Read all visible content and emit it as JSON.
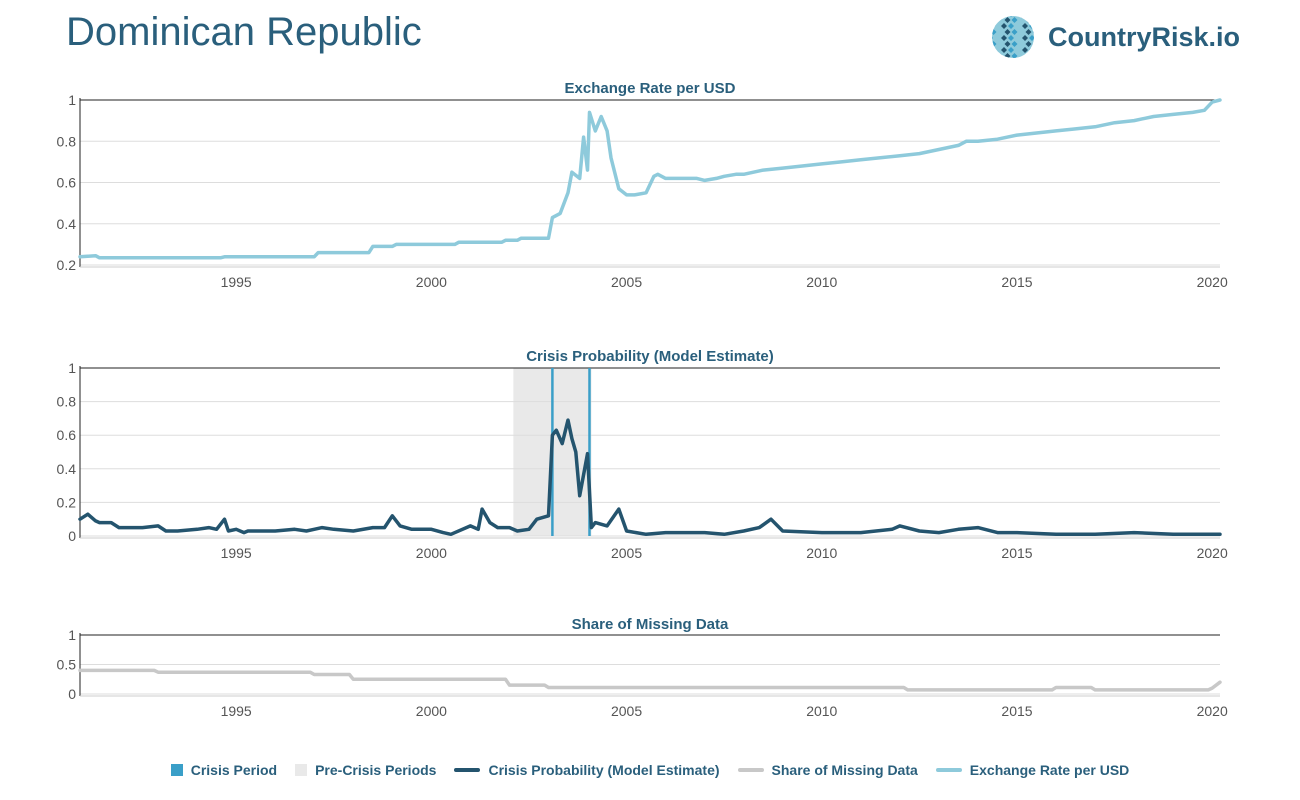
{
  "page": {
    "title": "Dominican Republic",
    "logo_text": "CountryRisk.io"
  },
  "colors": {
    "title": "#2a5f7c",
    "crisis_period": "#3a9fc8",
    "pre_crisis": "#e9e9e9",
    "crisis_probability": "#24546e",
    "missing_data": "#c8c8c8",
    "exchange_rate": "#8ecadb",
    "grid": "#dddddd",
    "axis_text": "#555555"
  },
  "legend": [
    {
      "label": "Crisis Period",
      "kind": "box",
      "color_key": "crisis_period"
    },
    {
      "label": "Pre-Crisis Periods",
      "kind": "box",
      "color_key": "pre_crisis"
    },
    {
      "label": "Crisis Probability (Model Estimate)",
      "kind": "line",
      "color_key": "crisis_probability"
    },
    {
      "label": "Share of Missing Data",
      "kind": "line",
      "color_key": "missing_data"
    },
    {
      "label": "Exchange Rate per USD",
      "kind": "line",
      "color_key": "exchange_rate"
    }
  ],
  "chart_data": [
    {
      "type": "line",
      "title": "Exchange Rate per USD",
      "xlim": [
        1991,
        2020.2
      ],
      "ylim": [
        0.2,
        1
      ],
      "yticks": [
        0.2,
        0.4,
        0.6,
        0.8,
        1
      ],
      "ytick_labels": [
        "0.2",
        "0.4",
        "0.6",
        "0.8",
        "1"
      ],
      "xticks": [
        1995,
        2000,
        2005,
        2010,
        2015,
        2020
      ],
      "xtick_labels": [
        "1995",
        "2000",
        "2005",
        "2010",
        "2015",
        "2020"
      ],
      "grid": true,
      "series": [
        {
          "name": "Exchange Rate per USD",
          "color_key": "exchange_rate",
          "x": [
            1991.0,
            1991.4,
            1991.5,
            1994.6,
            1994.7,
            1997.0,
            1997.1,
            1998.4,
            1998.5,
            1999.0,
            1999.1,
            2000.6,
            2000.7,
            2001.8,
            2001.9,
            2002.2,
            2002.3,
            2003.0,
            2003.1,
            2003.3,
            2003.5,
            2003.6,
            2003.8,
            2003.9,
            2004.0,
            2004.05,
            2004.2,
            2004.35,
            2004.5,
            2004.6,
            2004.8,
            2005.0,
            2005.2,
            2005.5,
            2005.7,
            2005.8,
            2006.0,
            2006.2,
            2006.5,
            2006.8,
            2007.0,
            2007.3,
            2007.5,
            2007.8,
            2008.0,
            2008.5,
            2009.0,
            2009.5,
            2010.0,
            2010.5,
            2011.0,
            2011.5,
            2012.0,
            2012.5,
            2013.0,
            2013.5,
            2013.7,
            2014.0,
            2014.5,
            2015.0,
            2015.5,
            2016.0,
            2016.5,
            2017.0,
            2017.5,
            2018.0,
            2018.5,
            2019.0,
            2019.5,
            2019.8,
            2020.0,
            2020.2
          ],
          "y": [
            0.24,
            0.245,
            0.235,
            0.235,
            0.24,
            0.24,
            0.26,
            0.26,
            0.29,
            0.29,
            0.3,
            0.3,
            0.31,
            0.31,
            0.32,
            0.32,
            0.33,
            0.33,
            0.43,
            0.45,
            0.55,
            0.65,
            0.62,
            0.82,
            0.66,
            0.94,
            0.85,
            0.92,
            0.85,
            0.72,
            0.57,
            0.54,
            0.54,
            0.55,
            0.63,
            0.64,
            0.62,
            0.62,
            0.62,
            0.62,
            0.61,
            0.62,
            0.63,
            0.64,
            0.64,
            0.66,
            0.67,
            0.68,
            0.69,
            0.7,
            0.71,
            0.72,
            0.73,
            0.74,
            0.76,
            0.78,
            0.8,
            0.8,
            0.81,
            0.83,
            0.84,
            0.85,
            0.86,
            0.87,
            0.89,
            0.9,
            0.92,
            0.93,
            0.94,
            0.95,
            0.99,
            1.0
          ]
        }
      ]
    },
    {
      "type": "line",
      "title": "Crisis Probability (Model Estimate)",
      "xlim": [
        1991,
        2020.2
      ],
      "ylim": [
        0,
        1
      ],
      "yticks": [
        0,
        0.2,
        0.4,
        0.6,
        0.8,
        1
      ],
      "ytick_labels": [
        "0",
        "0.2",
        "0.4",
        "0.6",
        "0.8",
        "1"
      ],
      "xticks": [
        1995,
        2000,
        2005,
        2010,
        2015,
        2020
      ],
      "xtick_labels": [
        "1995",
        "2000",
        "2005",
        "2010",
        "2015",
        "2020"
      ],
      "grid": true,
      "pre_crisis_periods": [
        [
          2002.1,
          2004.1
        ]
      ],
      "crisis_period_markers": [
        2003.1,
        2004.05
      ],
      "series": [
        {
          "name": "Crisis Probability (Model Estimate)",
          "color_key": "crisis_probability",
          "x": [
            1991.0,
            1991.2,
            1991.4,
            1991.5,
            1991.8,
            1992.0,
            1992.3,
            1992.6,
            1993.0,
            1993.2,
            1993.5,
            1994.0,
            1994.3,
            1994.5,
            1994.7,
            1994.8,
            1995.0,
            1995.2,
            1995.3,
            1995.5,
            1996.0,
            1996.5,
            1996.8,
            1997.0,
            1997.2,
            1997.5,
            1998.0,
            1998.5,
            1998.8,
            1999.0,
            1999.2,
            1999.5,
            2000.0,
            2000.3,
            2000.5,
            2001.0,
            2001.2,
            2001.3,
            2001.5,
            2001.7,
            2002.0,
            2002.2,
            2002.5,
            2002.7,
            2003.0,
            2003.1,
            2003.2,
            2003.35,
            2003.5,
            2003.6,
            2003.7,
            2003.8,
            2004.0,
            2004.1,
            2004.2,
            2004.5,
            2004.8,
            2005.0,
            2005.5,
            2006.0,
            2007.0,
            2007.5,
            2008.0,
            2008.4,
            2008.7,
            2009.0,
            2010.0,
            2011.0,
            2011.8,
            2012.0,
            2012.5,
            2013.0,
            2013.5,
            2014.0,
            2014.5,
            2015.0,
            2016.0,
            2017.0,
            2018.0,
            2019.0,
            2020.2
          ],
          "y": [
            0.1,
            0.13,
            0.09,
            0.08,
            0.08,
            0.05,
            0.05,
            0.05,
            0.06,
            0.03,
            0.03,
            0.04,
            0.05,
            0.04,
            0.1,
            0.03,
            0.04,
            0.02,
            0.03,
            0.03,
            0.03,
            0.04,
            0.03,
            0.04,
            0.05,
            0.04,
            0.03,
            0.05,
            0.05,
            0.12,
            0.06,
            0.04,
            0.04,
            0.02,
            0.01,
            0.06,
            0.04,
            0.16,
            0.08,
            0.05,
            0.05,
            0.03,
            0.04,
            0.1,
            0.12,
            0.6,
            0.63,
            0.55,
            0.69,
            0.58,
            0.5,
            0.24,
            0.49,
            0.05,
            0.08,
            0.06,
            0.16,
            0.03,
            0.01,
            0.02,
            0.02,
            0.01,
            0.03,
            0.05,
            0.1,
            0.03,
            0.02,
            0.02,
            0.04,
            0.06,
            0.03,
            0.02,
            0.04,
            0.05,
            0.02,
            0.02,
            0.01,
            0.01,
            0.02,
            0.01,
            0.01
          ]
        }
      ]
    },
    {
      "type": "line",
      "title": "Share of Missing Data",
      "xlim": [
        1991,
        2020.2
      ],
      "ylim": [
        0,
        1
      ],
      "yticks": [
        0,
        0.5,
        1
      ],
      "ytick_labels": [
        "0",
        "0.5",
        "1"
      ],
      "xticks": [
        1995,
        2000,
        2005,
        2010,
        2015,
        2020
      ],
      "xtick_labels": [
        "1995",
        "2000",
        "2005",
        "2010",
        "2015",
        "2020"
      ],
      "grid": true,
      "series": [
        {
          "name": "Share of Missing Data",
          "color_key": "missing_data",
          "x": [
            1991.0,
            1992.9,
            1993.0,
            1996.9,
            1997.0,
            1997.9,
            1998.0,
            2001.9,
            2002.0,
            2002.9,
            2003.0,
            2012.1,
            2012.2,
            2015.9,
            2016.0,
            2016.9,
            2017.0,
            2019.9,
            2020.0,
            2020.2
          ],
          "y": [
            0.4,
            0.4,
            0.37,
            0.37,
            0.33,
            0.33,
            0.25,
            0.25,
            0.15,
            0.15,
            0.11,
            0.11,
            0.07,
            0.07,
            0.11,
            0.11,
            0.07,
            0.07,
            0.1,
            0.2
          ]
        }
      ]
    }
  ]
}
